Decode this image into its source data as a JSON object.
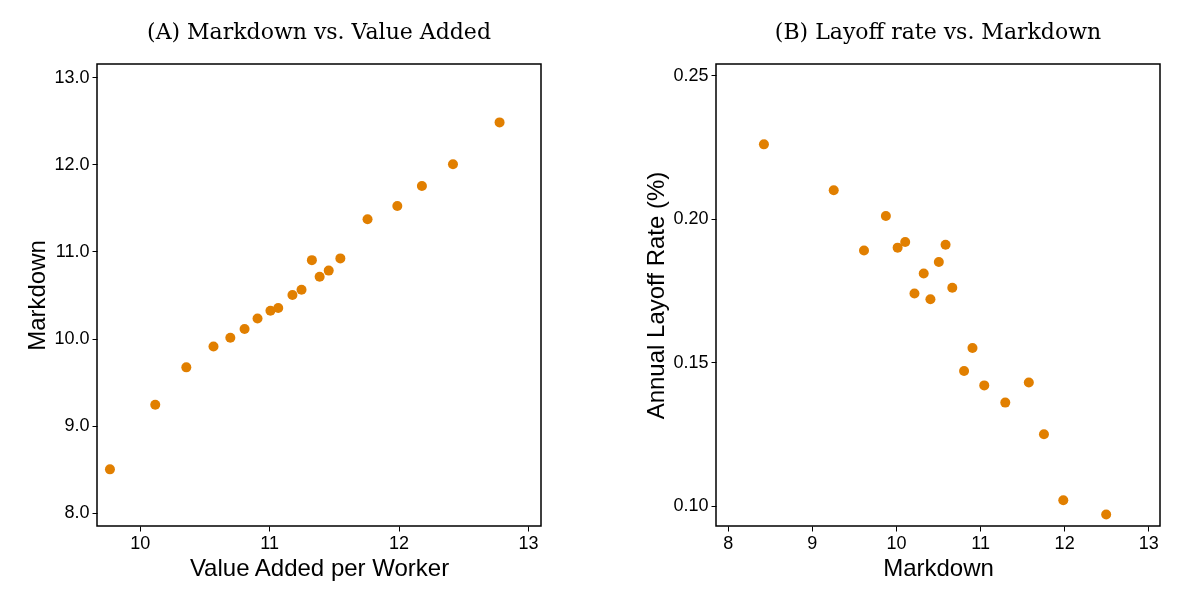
{
  "chart_data": [
    {
      "type": "scatter",
      "title": "(A) Markdown vs. Value Added",
      "xlabel": "Value Added per Worker",
      "ylabel": "Markdown",
      "marker": "circle",
      "grid": false,
      "xlim": [
        9.67,
        13.1
      ],
      "xticks": [
        10,
        11,
        12,
        13
      ],
      "ylim": [
        7.85,
        13.15
      ],
      "yticks": [
        {
          "value": 8,
          "label": "8.0"
        },
        {
          "value": 9,
          "label": "9.0"
        },
        {
          "value": 10,
          "label": "10.0"
        },
        {
          "value": 11,
          "label": "11.0"
        },
        {
          "value": 12,
          "label": "12.0"
        },
        {
          "value": 13,
          "label": "13.0"
        }
      ],
      "x": [
        9.77,
        10.12,
        10.36,
        10.57,
        10.7,
        10.81,
        10.91,
        11.01,
        11.07,
        11.18,
        11.25,
        11.33,
        11.39,
        11.46,
        11.55,
        11.76,
        11.99,
        12.18,
        12.42,
        12.78
      ],
      "series": [
        {
          "color": "#e17f00",
          "values": [
            8.5,
            9.24,
            9.67,
            9.91,
            10.01,
            10.11,
            10.23,
            10.32,
            10.35,
            10.5,
            10.56,
            10.9,
            10.71,
            10.78,
            10.92,
            11.37,
            11.52,
            11.75,
            12.0,
            12.48
          ]
        }
      ]
    },
    {
      "type": "scatter",
      "title": "(B) Layoff rate vs. Markdown",
      "xlabel": "Markdown",
      "ylabel": "Annual Layoff Rate (%)",
      "marker": "circle",
      "grid": false,
      "xlim": [
        7.86,
        13.14
      ],
      "xticks": [
        8,
        9,
        10,
        11,
        12,
        13
      ],
      "ylim": [
        0.093,
        0.254
      ],
      "yticks": [
        {
          "value": 0.1,
          "label": "0.10"
        },
        {
          "value": 0.15,
          "label": "0.15"
        },
        {
          "value": 0.2,
          "label": "0.20"
        },
        {
          "value": 0.25,
          "label": "0.25"
        }
      ],
      "x": [
        8.43,
        9.26,
        9.62,
        9.88,
        10.02,
        10.11,
        10.22,
        10.33,
        10.41,
        10.51,
        10.59,
        10.67,
        10.91,
        10.81,
        11.05,
        11.3,
        11.58,
        11.76,
        11.99,
        12.5
      ],
      "series": [
        {
          "color": "#e17f00",
          "values": [
            0.226,
            0.21,
            0.189,
            0.201,
            0.19,
            0.192,
            0.174,
            0.181,
            0.172,
            0.185,
            0.191,
            0.176,
            0.155,
            0.147,
            0.142,
            0.136,
            0.143,
            0.125,
            0.102,
            0.097
          ]
        }
      ]
    }
  ]
}
